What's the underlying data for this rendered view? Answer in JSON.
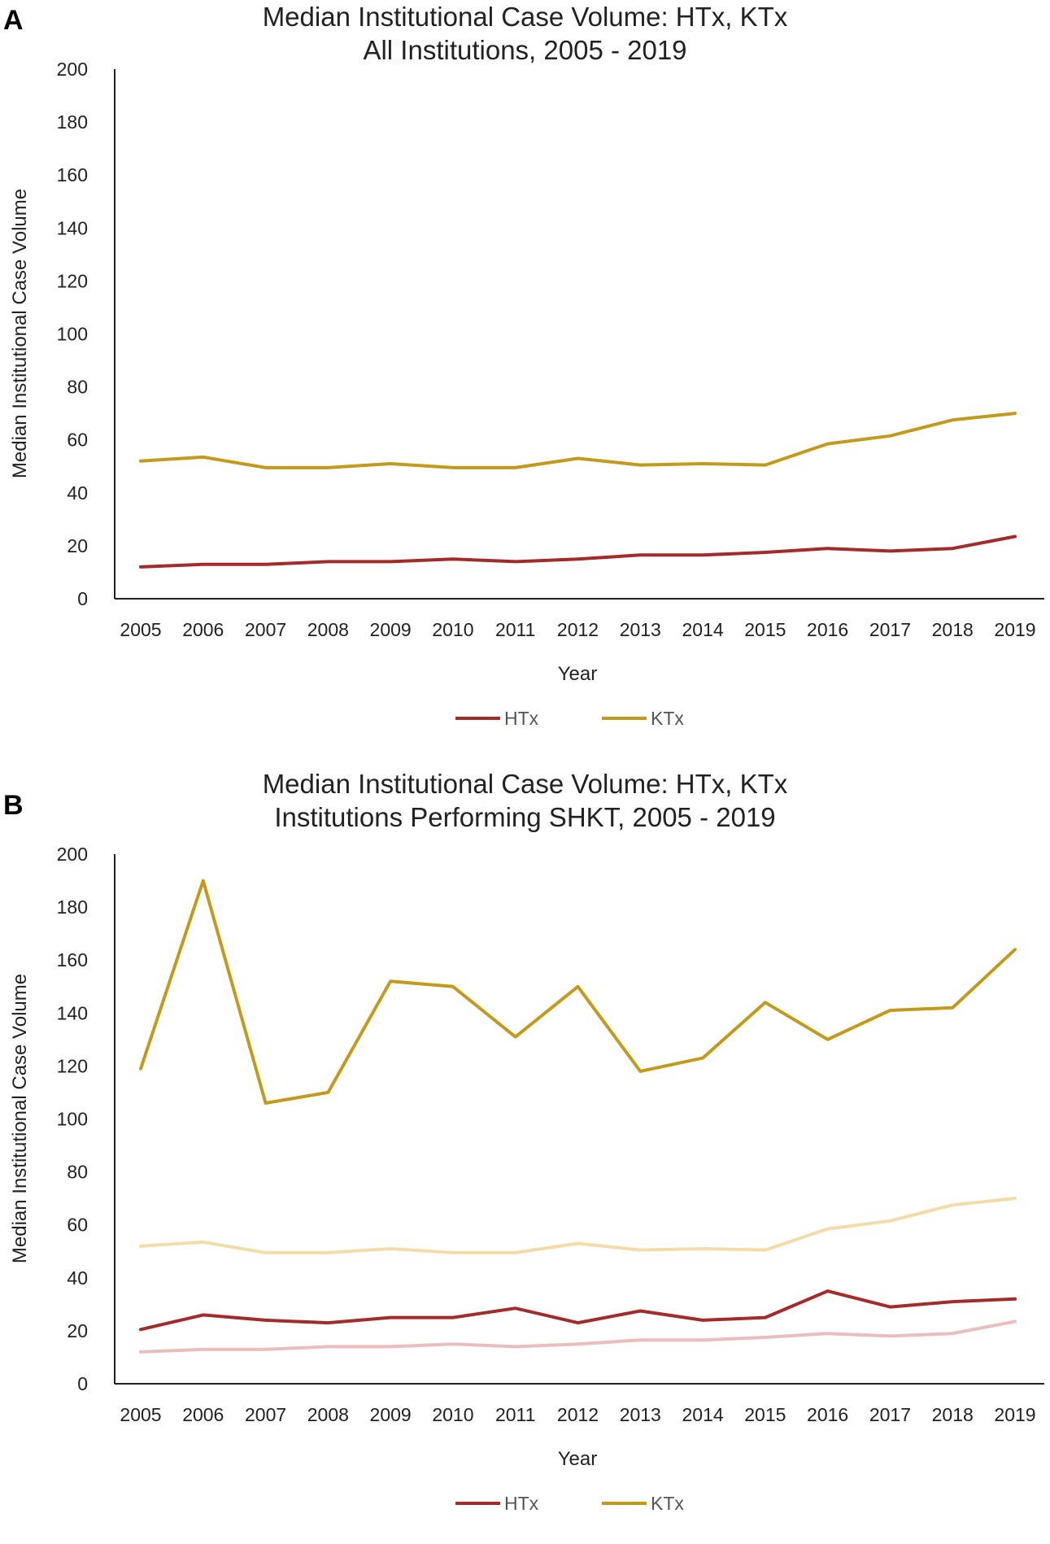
{
  "chart_data": [
    {
      "panel": "A",
      "type": "line",
      "title": [
        "Median Institutional Case Volume: HTx, KTx",
        "All Institutions, 2005 - 2019"
      ],
      "xlabel": "Year",
      "ylabel": "Median Institutional Case Volume",
      "ylim": [
        0,
        200
      ],
      "yticks": [
        0,
        20,
        40,
        60,
        80,
        100,
        120,
        140,
        160,
        180,
        200
      ],
      "grid": false,
      "legend_position": "bottom",
      "categories": [
        "2005",
        "2006",
        "2007",
        "2008",
        "2009",
        "2010",
        "2011",
        "2012",
        "2013",
        "2014",
        "2015",
        "2016",
        "2017",
        "2018",
        "2019"
      ],
      "series": [
        {
          "name": "HTx",
          "color": "#a52a2a",
          "in_legend": true,
          "values": [
            12,
            13,
            13,
            14,
            14,
            15,
            14,
            15,
            16.5,
            16.5,
            17.5,
            19,
            18,
            19,
            23.5
          ]
        },
        {
          "name": "KTx",
          "color": "#c49a1a",
          "in_legend": true,
          "values": [
            52,
            53.5,
            49.5,
            49.5,
            51,
            49.5,
            49.5,
            53,
            50.5,
            51,
            50.5,
            58.5,
            61.5,
            67.5,
            70
          ]
        }
      ]
    },
    {
      "panel": "B",
      "type": "line",
      "title": [
        "Median Institutional Case Volume: HTx, KTx",
        "Institutions Performing SHKT, 2005 - 2019"
      ],
      "xlabel": "Year",
      "ylabel": "Median Institutional Case Volume",
      "ylim": [
        0,
        200
      ],
      "yticks": [
        0,
        20,
        40,
        60,
        80,
        100,
        120,
        140,
        160,
        180,
        200
      ],
      "grid": false,
      "legend_position": "bottom",
      "categories": [
        "2005",
        "2006",
        "2007",
        "2008",
        "2009",
        "2010",
        "2011",
        "2012",
        "2013",
        "2014",
        "2015",
        "2016",
        "2017",
        "2018",
        "2019"
      ],
      "series": [
        {
          "name": "HTx",
          "color": "#a52a2a",
          "in_legend": true,
          "values": [
            20.5,
            26,
            24,
            23,
            25,
            25,
            28.5,
            23,
            27.5,
            24,
            25,
            35,
            29,
            31,
            32
          ]
        },
        {
          "name": "KTx",
          "color": "#c49a1a",
          "in_legend": true,
          "values": [
            119,
            190,
            106,
            110,
            152,
            150,
            131,
            150,
            118,
            123,
            144,
            130,
            141,
            142,
            164
          ]
        },
        {
          "color": "#ebbdbd",
          "in_legend": false,
          "values": [
            12,
            13,
            13,
            14,
            14,
            15,
            14,
            15,
            16.5,
            16.5,
            17.5,
            19,
            18,
            19,
            23.5
          ]
        },
        {
          "color": "#f3dca8",
          "in_legend": false,
          "values": [
            52,
            53.5,
            49.5,
            49.5,
            51,
            49.5,
            49.5,
            53,
            50.5,
            51,
            50.5,
            58.5,
            61.5,
            67.5,
            70
          ]
        }
      ]
    }
  ]
}
